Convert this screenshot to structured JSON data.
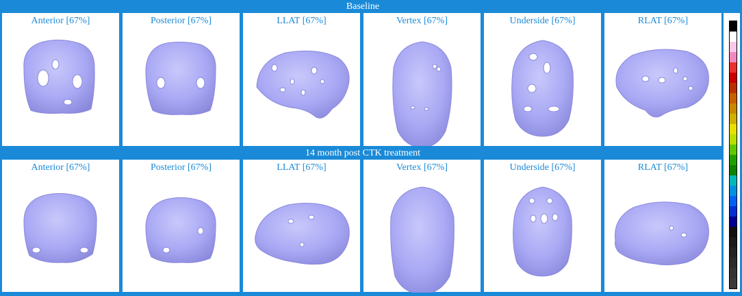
{
  "sections": [
    {
      "title": "Baseline",
      "views": [
        {
          "label": "Anterior [67%]",
          "view": "anterior"
        },
        {
          "label": "Posterior [67%]",
          "view": "posterior"
        },
        {
          "label": "LLAT [67%]",
          "view": "llat"
        },
        {
          "label": "Vertex [67%]",
          "view": "vertex"
        },
        {
          "label": "Underside [67%]",
          "view": "underside"
        },
        {
          "label": "RLAT [67%]",
          "view": "rlat"
        }
      ]
    },
    {
      "title": "14 month post CTK treatment",
      "views": [
        {
          "label": "Anterior [67%]",
          "view": "anterior"
        },
        {
          "label": "Posterior [67%]",
          "view": "posterior"
        },
        {
          "label": "LLAT [67%]",
          "view": "llat"
        },
        {
          "label": "Vertex [67%]",
          "view": "vertex"
        },
        {
          "label": "Underside [67%]",
          "view": "underside"
        },
        {
          "label": "RLAT [67%]",
          "view": "rlat"
        }
      ]
    }
  ],
  "colors": {
    "frame": "#1a8ad8",
    "title_text": "#1a8ad8",
    "brain_fill": "#a9a8f4",
    "brain_shade": "#8a89dc",
    "brain_highlight": "#c9c8fb",
    "brain_hole": "#ffffff"
  },
  "color_scale": [
    "#000000",
    "#ffffff",
    "#f8c8e8",
    "#f088c0",
    "#e83030",
    "#c80000",
    "#b83000",
    "#c86000",
    "#c88800",
    "#d0b000",
    "#e8e000",
    "#b8e000",
    "#60c800",
    "#20a000",
    "#108000",
    "#00b8b8",
    "#0090e0",
    "#0060f0",
    "#0030d0",
    "#000090",
    "#101010",
    "#1a1a1a",
    "#222222",
    "#2a2a2a",
    "#333333",
    "#3a3a3a"
  ]
}
